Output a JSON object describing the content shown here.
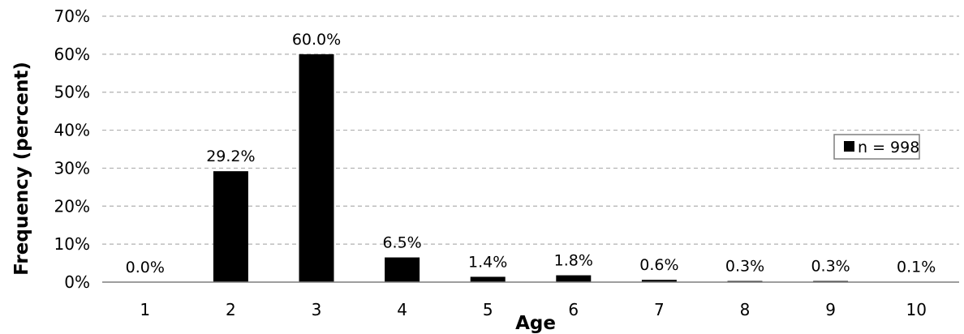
{
  "chart_data": {
    "type": "bar",
    "categories": [
      "1",
      "2",
      "3",
      "4",
      "5",
      "6",
      "7",
      "8",
      "9",
      "10"
    ],
    "values": [
      0.0,
      29.2,
      60.0,
      6.5,
      1.4,
      1.8,
      0.6,
      0.3,
      0.3,
      0.1
    ],
    "data_labels": [
      "0.0%",
      "29.2%",
      "60.0%",
      "6.5%",
      "1.4%",
      "1.8%",
      "0.6%",
      "0.3%",
      "0.3%",
      "0.1%"
    ],
    "title": "",
    "xlabel": "Age",
    "ylabel": "Frequency (percent)",
    "ylim": [
      0,
      70
    ],
    "yticks": [
      0,
      10,
      20,
      30,
      40,
      50,
      60,
      70
    ],
    "ytick_labels": [
      "0%",
      "10%",
      "20%",
      "30%",
      "40%",
      "50%",
      "60%",
      "70%"
    ],
    "grid": "horizontal dashed",
    "legend": {
      "entries": [
        "n = 998"
      ],
      "placement": "right"
    },
    "colors": {
      "bar": "#000000",
      "grid": "#b0b0b0",
      "axis": "#7f7f7f"
    }
  }
}
